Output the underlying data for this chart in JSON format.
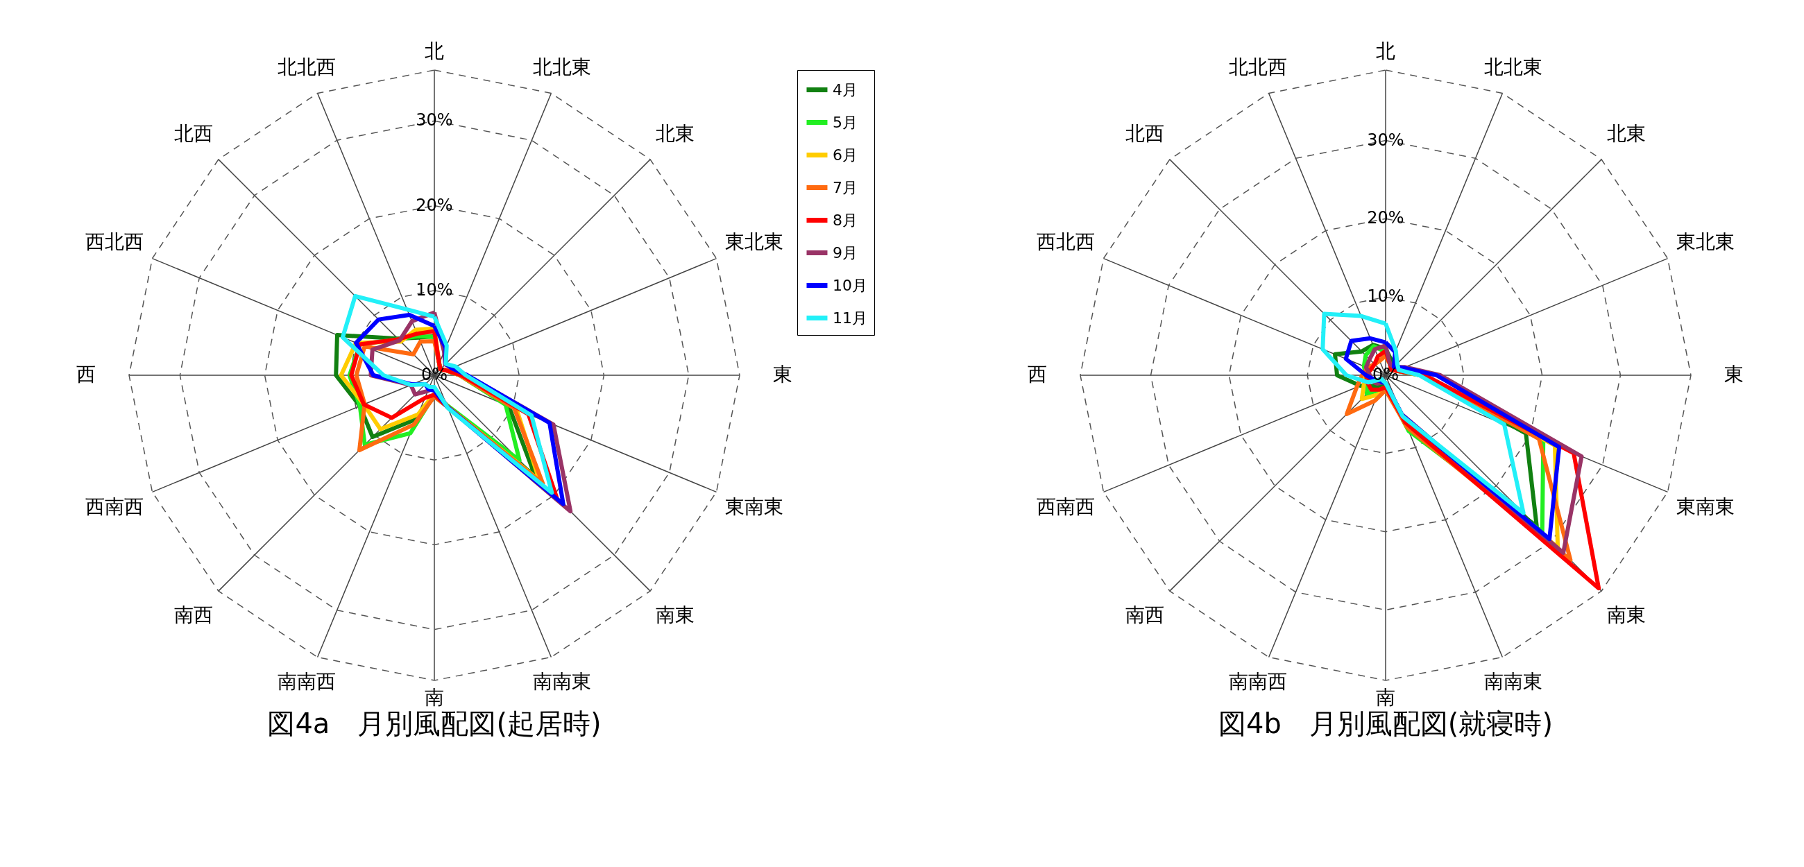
{
  "chart_data": [
    {
      "type": "radar",
      "title": "図4a　月別風配図(起居時)",
      "categories": [
        "北",
        "北北東",
        "北東",
        "東北東",
        "東",
        "東南東",
        "南東",
        "南南東",
        "南",
        "南南西",
        "南西",
        "西南西",
        "西",
        "西北西",
        "北西",
        "北北西"
      ],
      "ylim": [
        0,
        36
      ],
      "yticks": [
        {
          "value": 0,
          "label": "0%"
        },
        {
          "value": 10,
          "label": "10%"
        },
        {
          "value": 20,
          "label": "20%"
        },
        {
          "value": 30,
          "label": "30%"
        }
      ],
      "grid": true,
      "legend": "right",
      "series": [
        {
          "name": "4月",
          "color": "#118011",
          "values": [
            4.6,
            1.5,
            1.0,
            1.5,
            3.0,
            9.5,
            16.8,
            4.0,
            2.5,
            5.6,
            10.3,
            9.5,
            11.6,
            12.4,
            6.1,
            4.8
          ]
        },
        {
          "name": "5月",
          "color": "#22ee22",
          "values": [
            4.5,
            1.5,
            1.0,
            1.5,
            3.0,
            9.1,
            14.2,
            3.8,
            2.3,
            7.4,
            11.6,
            9.5,
            10.0,
            9.5,
            6.0,
            5.0
          ]
        },
        {
          "name": "6月",
          "color": "#ffcc00",
          "values": [
            5.5,
            1.5,
            1.0,
            1.5,
            3.0,
            10.5,
            17.5,
            4.0,
            2.2,
            5.0,
            9.0,
            9.0,
            11.0,
            10.0,
            5.6,
            5.8
          ]
        },
        {
          "name": "7月",
          "color": "#ff6a10",
          "values": [
            4.0,
            1.5,
            1.0,
            1.5,
            3.0,
            10.2,
            18.1,
            4.0,
            2.5,
            6.3,
            12.5,
            8.9,
            9.2,
            8.9,
            3.5,
            4.3
          ]
        },
        {
          "name": "8月",
          "color": "#ff0000",
          "values": [
            5.2,
            1.5,
            1.0,
            1.5,
            3.2,
            12.0,
            20.4,
            4.0,
            2.3,
            2.9,
            7.1,
            9.0,
            9.8,
            9.5,
            6.0,
            5.3
          ]
        },
        {
          "name": "9月",
          "color": "#993366",
          "values": [
            7.4,
            3.0,
            1.8,
            2.2,
            3.8,
            15.2,
            22.7,
            4.0,
            1.5,
            2.0,
            3.2,
            3.0,
            7.5,
            7.9,
            5.8,
            6.9
          ]
        },
        {
          "name": "10月",
          "color": "#0000ff",
          "values": [
            5.8,
            3.5,
            1.9,
            2.2,
            3.9,
            14.7,
            21.5,
            4.1,
            1.8,
            1.8,
            1.5,
            2.8,
            7.2,
            10.0,
            9.3,
            7.7
          ]
        },
        {
          "name": "11月",
          "color": "#22f0f8",
          "values": [
            6.9,
            3.8,
            1.9,
            2.7,
            3.7,
            12.4,
            19.6,
            4.2,
            1.4,
            1.5,
            1.5,
            3.0,
            6.0,
            11.7,
            13.2,
            8.4
          ]
        }
      ]
    },
    {
      "type": "radar",
      "title": "図4b　月別風配図(就寝時)",
      "categories": [
        "北",
        "北北東",
        "北東",
        "東北東",
        "東",
        "東南東",
        "南東",
        "南南東",
        "南",
        "南南西",
        "南西",
        "西南西",
        "西",
        "西北西",
        "北西",
        "北北西"
      ],
      "ylim": [
        0,
        39
      ],
      "yticks": [
        {
          "value": 0,
          "label": "0%"
        },
        {
          "value": 10,
          "label": "10%"
        },
        {
          "value": 20,
          "label": "20%"
        },
        {
          "value": 30,
          "label": "30%"
        }
      ],
      "grid": true,
      "series": [
        {
          "color": "#118011",
          "values": [
            3.4,
            2.0,
            1.0,
            1.5,
            4.5,
            19.4,
            27.3,
            7.0,
            1.5,
            1.5,
            2.0,
            3.5,
            6.2,
            7.0,
            4.3,
            4.2
          ]
        },
        {
          "color": "#22ee22",
          "values": [
            3.0,
            1.5,
            1.0,
            1.5,
            4.5,
            21.8,
            28.3,
            7.7,
            1.5,
            2.0,
            3.4,
            2.5,
            2.5,
            3.0,
            3.6,
            4.0
          ]
        },
        {
          "color": "#ffcc00",
          "values": [
            2.5,
            1.5,
            1.0,
            1.5,
            4.5,
            23.4,
            31.1,
            7.0,
            1.8,
            2.7,
            4.3,
            3.0,
            2.5,
            2.0,
            2.0,
            2.0
          ]
        },
        {
          "color": "#ff6a10",
          "values": [
            2.5,
            1.5,
            1.0,
            1.5,
            5.0,
            21.2,
            33.4,
            7.2,
            1.9,
            3.5,
            7.0,
            4.0,
            3.0,
            2.5,
            2.0,
            2.0
          ]
        },
        {
          "color": "#ff0000",
          "values": [
            3.1,
            1.5,
            1.0,
            1.5,
            5.0,
            26.0,
            38.5,
            6.5,
            1.5,
            2.0,
            2.6,
            2.5,
            2.5,
            2.0,
            2.0,
            2.6
          ]
        },
        {
          "color": "#993366",
          "values": [
            3.8,
            1.5,
            1.5,
            2.7,
            7.0,
            27.1,
            32.1,
            5.4,
            1.0,
            1.0,
            1.5,
            2.0,
            2.0,
            2.7,
            2.9,
            3.6
          ]
        },
        {
          "color": "#0000ff",
          "values": [
            4.2,
            3.2,
            1.5,
            2.5,
            6.5,
            24.0,
            29.6,
            5.5,
            1.0,
            1.0,
            1.0,
            1.5,
            2.5,
            5.5,
            6.2,
            5.1
          ]
        },
        {
          "color": "#22f0f8",
          "values": [
            6.6,
            3.4,
            2.1,
            1.8,
            4.3,
            16.4,
            24.9,
            5.7,
            1.0,
            0.8,
            0.7,
            2.4,
            5.0,
            8.7,
            11.1,
            8.2
          ]
        }
      ]
    }
  ]
}
